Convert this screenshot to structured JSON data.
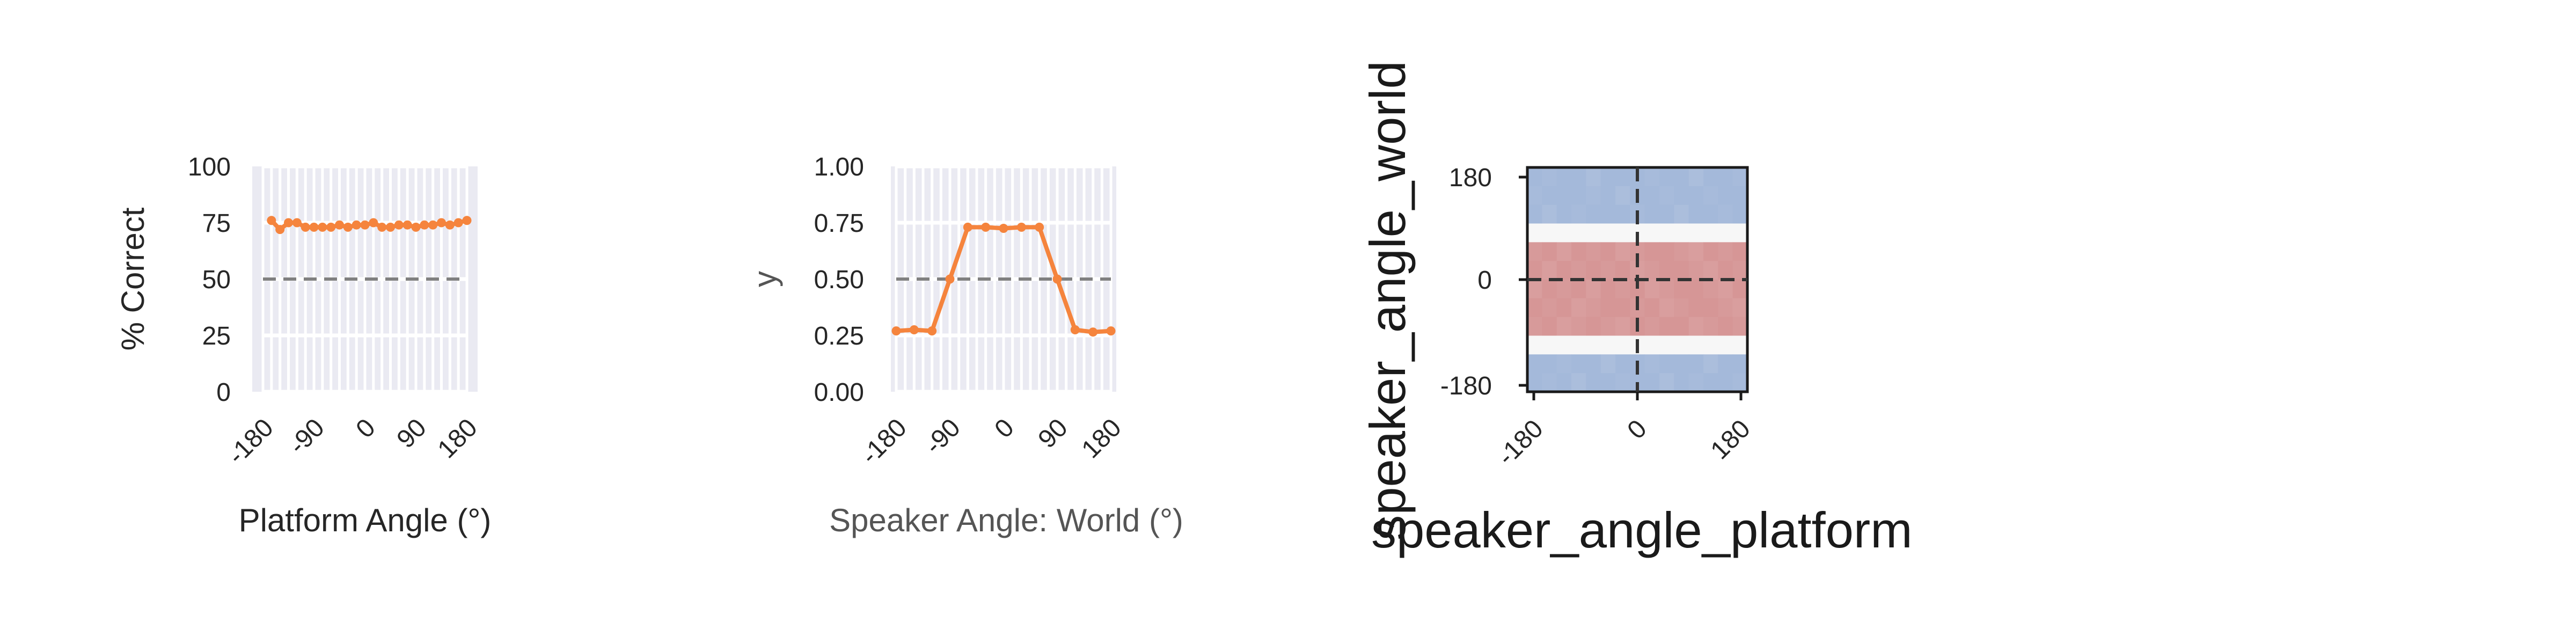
{
  "chart_data": [
    {
      "type": "line",
      "title": "",
      "xlabel": "Platform Angle (°)",
      "ylabel": "% Correct",
      "x_ticks": [
        "-180",
        "-90",
        "0",
        "90",
        "180"
      ],
      "y_ticks": [
        "0",
        "25",
        "50",
        "75",
        "100"
      ],
      "xlim": [
        -180,
        180
      ],
      "ylim": [
        0,
        100
      ],
      "grid": true,
      "reference_line": {
        "y": 50,
        "style": "dashed",
        "color": "#808080"
      },
      "series": [
        {
          "color": "#f5843d",
          "x": [
            -165,
            -150,
            -135,
            -120,
            -105,
            -90,
            -75,
            -60,
            -45,
            -30,
            -15,
            0,
            15,
            30,
            45,
            60,
            75,
            90,
            105,
            120,
            135,
            150,
            165,
            180
          ],
          "y": [
            76,
            72,
            75,
            75,
            73,
            73,
            73,
            73,
            74,
            73,
            74,
            74,
            75,
            73,
            73,
            74,
            74,
            73,
            74,
            74,
            75,
            74,
            75,
            76
          ]
        }
      ]
    },
    {
      "type": "line",
      "title": "",
      "xlabel": "Speaker Angle: World (°)",
      "ylabel": "y",
      "x_ticks": [
        "-180",
        "-90",
        "0",
        "90",
        "180"
      ],
      "y_ticks": [
        "0.00",
        "0.25",
        "0.50",
        "0.75",
        "1.00"
      ],
      "xlim": [
        -180,
        180
      ],
      "ylim": [
        0,
        1
      ],
      "grid": true,
      "reference_line": {
        "y": 0.5,
        "style": "dashed",
        "color": "#808080"
      },
      "series": [
        {
          "color": "#f5843d",
          "x": [
            -180,
            -150,
            -120,
            -90,
            -60,
            -30,
            0,
            30,
            60,
            90,
            120,
            150,
            180
          ],
          "y": [
            0.27,
            0.275,
            0.27,
            0.5,
            0.73,
            0.73,
            0.725,
            0.73,
            0.73,
            0.5,
            0.275,
            0.265,
            0.27
          ]
        }
      ]
    },
    {
      "type": "heatmap",
      "title": "",
      "xlabel": "speaker_angle_platform",
      "ylabel": "speaker_angle_world",
      "x_ticks": [
        "-180",
        "0",
        "180"
      ],
      "y_ticks": [
        "180",
        "0",
        "-180"
      ],
      "xlim": [
        -180,
        180
      ],
      "ylim": [
        -180,
        180
      ],
      "reference_lines": {
        "x": 0,
        "y": 0,
        "style": "dashed"
      },
      "colors": {
        "low": "#a4b9da",
        "mid": "#f7f7f7",
        "high": "#d69696"
      },
      "rows_top_to_bottom": [
        [
          0.24,
          0.26,
          0.24,
          0.25,
          0.27,
          0.25,
          0.24,
          0.25,
          0.26,
          0.24,
          0.25,
          0.27,
          0.25,
          0.24,
          0.26
        ],
        [
          0.26,
          0.24,
          0.25,
          0.24,
          0.26,
          0.25,
          0.27,
          0.24,
          0.25,
          0.26,
          0.24,
          0.25,
          0.26,
          0.25,
          0.24
        ],
        [
          0.25,
          0.27,
          0.24,
          0.26,
          0.25,
          0.24,
          0.25,
          0.26,
          0.24,
          0.25,
          0.27,
          0.24,
          0.25,
          0.26,
          0.25
        ],
        [
          0.5,
          0.5,
          0.5,
          0.5,
          0.5,
          0.5,
          0.5,
          0.5,
          0.5,
          0.5,
          0.5,
          0.5,
          0.5,
          0.5,
          0.5
        ],
        [
          0.74,
          0.75,
          0.73,
          0.76,
          0.74,
          0.75,
          0.73,
          0.74,
          0.76,
          0.75,
          0.74,
          0.73,
          0.75,
          0.74,
          0.76
        ],
        [
          0.75,
          0.73,
          0.76,
          0.74,
          0.75,
          0.74,
          0.76,
          0.73,
          0.74,
          0.75,
          0.76,
          0.74,
          0.73,
          0.75,
          0.74
        ],
        [
          0.73,
          0.75,
          0.74,
          0.75,
          0.73,
          0.76,
          0.74,
          0.75,
          0.73,
          0.74,
          0.75,
          0.76,
          0.74,
          0.73,
          0.75
        ],
        [
          0.76,
          0.74,
          0.75,
          0.73,
          0.74,
          0.75,
          0.76,
          0.74,
          0.75,
          0.73,
          0.74,
          0.75,
          0.76,
          0.74,
          0.73
        ],
        [
          0.74,
          0.75,
          0.73,
          0.74,
          0.76,
          0.74,
          0.73,
          0.75,
          0.74,
          0.76,
          0.75,
          0.73,
          0.74,
          0.75,
          0.74
        ],
        [
          0.5,
          0.5,
          0.5,
          0.5,
          0.5,
          0.5,
          0.5,
          0.5,
          0.5,
          0.5,
          0.5,
          0.5,
          0.5,
          0.5,
          0.5
        ],
        [
          0.25,
          0.24,
          0.26,
          0.25,
          0.24,
          0.27,
          0.25,
          0.24,
          0.26,
          0.25,
          0.24,
          0.25,
          0.27,
          0.24,
          0.25
        ],
        [
          0.24,
          0.26,
          0.25,
          0.27,
          0.25,
          0.24,
          0.26,
          0.25,
          0.24,
          0.27,
          0.25,
          0.26,
          0.24,
          0.25,
          0.26
        ]
      ]
    }
  ]
}
